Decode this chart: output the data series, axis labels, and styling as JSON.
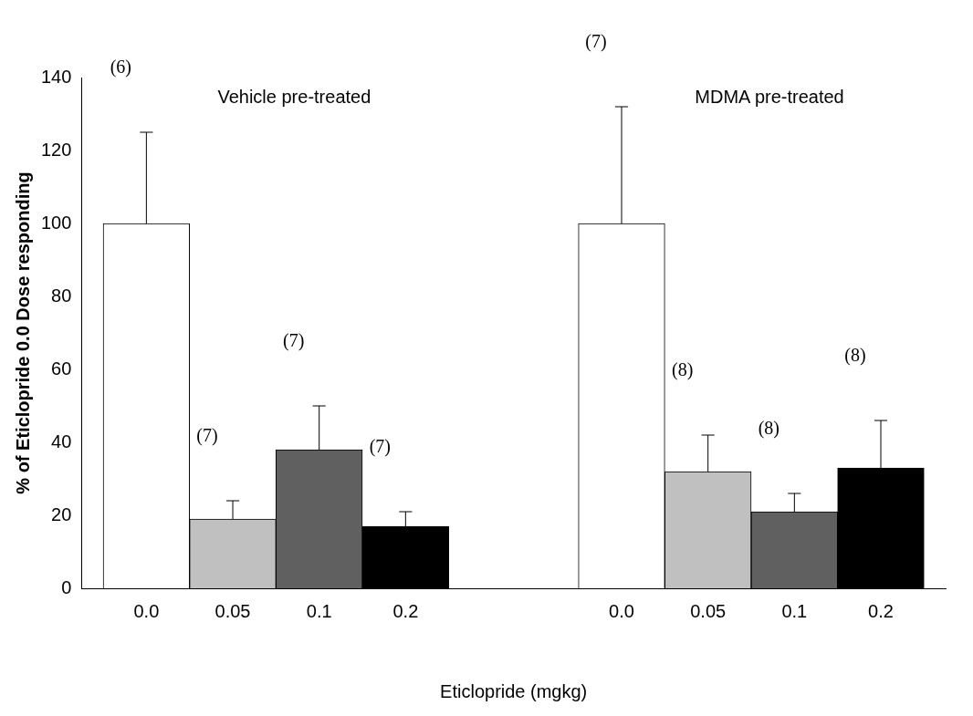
{
  "chart_data": {
    "type": "bar",
    "xlabel": "Eticlopride (mgkg)",
    "ylabel": "% of Eticlopride 0.0 Dose responding",
    "categories": [
      "0.0",
      "0.05",
      "0.1",
      "0.2",
      "0.0",
      "0.05",
      "0.1",
      "0.2"
    ],
    "values": [
      100,
      19,
      38,
      17,
      100,
      32,
      21,
      33
    ],
    "colors": [
      "#ffffff",
      "#c0c0c0",
      "#606060",
      "#000000",
      "#ffffff",
      "#c0c0c0",
      "#606060",
      "#000000"
    ],
    "errors": [
      [
        100,
        125
      ],
      [
        19,
        24
      ],
      [
        38,
        50
      ],
      [
        17,
        21
      ],
      [
        100,
        132
      ],
      [
        32,
        42
      ],
      [
        21,
        26
      ],
      [
        33,
        46
      ]
    ],
    "ylim": [
      0,
      140
    ],
    "yticks": [
      0,
      20,
      40,
      60,
      80,
      100,
      120,
      140
    ],
    "grid": false,
    "legend": false,
    "annotations": [
      "Vehicle pre-treated",
      "MDMA pre-treated",
      "(6)",
      "(7)",
      "(7)",
      "(7)",
      "(7)",
      "(8)",
      "(8)",
      "(8)"
    ]
  }
}
